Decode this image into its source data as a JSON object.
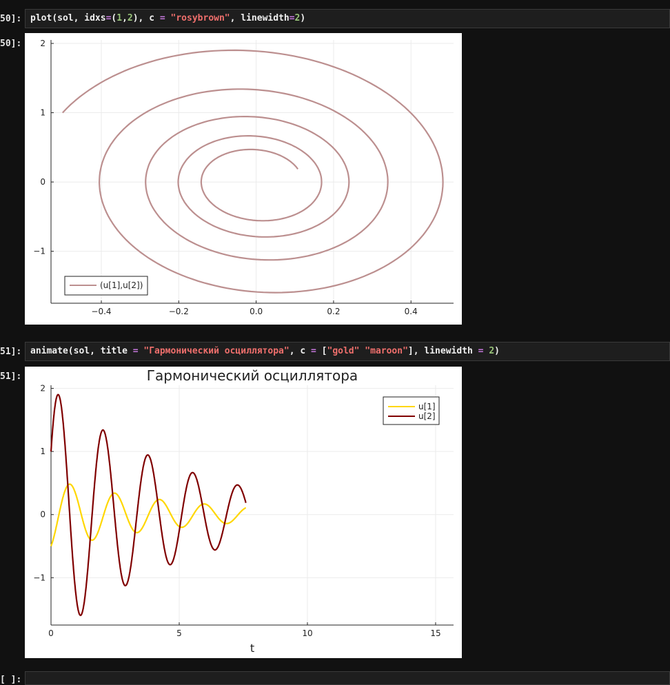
{
  "cells": [
    {
      "prompt_in": "50]:",
      "prompt_out": "50]:",
      "code": {
        "fn": "plot",
        "arg1": "(sol, idxs",
        "eq1": "=",
        "p_open": "(",
        "n1": "1",
        "comma": ",",
        "n2": "2",
        "p_close": "), c ",
        "eq2": "=",
        "space": " ",
        "color": "\"rosybrown\"",
        "lw_kw": ", linewidth",
        "eq3": "=",
        "lw": "2",
        "close": ")"
      }
    },
    {
      "prompt_in": "51]:",
      "prompt_out": "51]:",
      "code": {
        "fn": "animate",
        "arg1": "(sol, title ",
        "eq1": "=",
        "sp1": " ",
        "title": "\"Гармонический осциллятора\"",
        "mid": ", c ",
        "eq2": "=",
        "sp2": " [",
        "c1": "\"gold\"",
        "sp3": " ",
        "c2": "\"maroon\"",
        "mid2": "], linewidth ",
        "eq3": "=",
        "sp4": " ",
        "lw": "2",
        "close": ")"
      }
    },
    {
      "prompt_in": "[ ]:"
    }
  ],
  "chart_data": [
    {
      "type": "line",
      "title": "",
      "xlabel": "",
      "ylabel": "",
      "xticks": [
        "−0.4",
        "−0.2",
        "0.0",
        "0.2",
        "0.4"
      ],
      "yticks": [
        "−1",
        "0",
        "1",
        "2"
      ],
      "xlim": [
        -0.53,
        0.51
      ],
      "ylim": [
        -1.75,
        2.05
      ],
      "grid": true,
      "legend_position": "bottom-left",
      "series": [
        {
          "name": "(u[1],u[2])",
          "color": "#bc8f8f",
          "model": {
            "x0": -0.5,
            "y0": 1.0,
            "omega": 3.6,
            "decay": 0.2,
            "t_end": 7.6
          }
        }
      ]
    },
    {
      "type": "line",
      "title": "Гармонический осциллятора",
      "xlabel": "t",
      "ylabel": "",
      "xticks": [
        "0",
        "5",
        "10",
        "15"
      ],
      "yticks": [
        "−1",
        "0",
        "1",
        "2"
      ],
      "xlim": [
        0,
        15.7
      ],
      "ylim": [
        -1.75,
        2.05
      ],
      "grid": true,
      "legend_position": "top-right",
      "series": [
        {
          "name": "u[1]",
          "color": "#ffd700"
        },
        {
          "name": "u[2]",
          "color": "#800000"
        }
      ],
      "model": {
        "x0": -0.5,
        "y0": 1.0,
        "omega": 3.6,
        "decay": 0.2,
        "t_end": 7.6
      }
    }
  ]
}
